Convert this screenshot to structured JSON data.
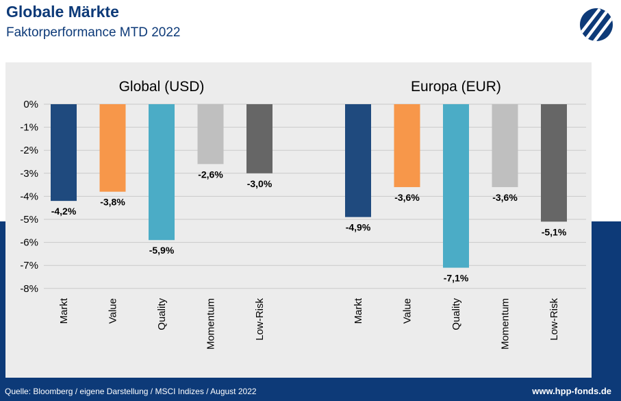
{
  "header": {
    "title": "Globale Märkte",
    "subtitle": "Faktorperformance MTD 2022"
  },
  "footer": {
    "source": "Quelle: Bloomberg / eigene Darstellung / MSCI Indizes / August 2022",
    "website": "www.hpp-fonds.de"
  },
  "colors": {
    "Markt": "#1f4a7e",
    "Value": "#f7974a",
    "Quality": "#4bacc6",
    "Momentum": "#bfbfbf",
    "Low-Risk": "#666666",
    "brand": "#0d3a78"
  },
  "logo_icon": "hpp-logo-icon",
  "chart_data": [
    {
      "type": "bar",
      "title": "Global (USD)",
      "categories": [
        "Markt",
        "Value",
        "Quality",
        "Momentum",
        "Low-Risk"
      ],
      "values": [
        -4.2,
        -3.8,
        -5.9,
        -2.6,
        -3.0
      ],
      "value_labels": [
        "-4,2%",
        "-3,8%",
        "-5,9%",
        "-2,6%",
        "-3,0%"
      ],
      "ylim": [
        -8,
        0
      ],
      "yticks": [
        "0%",
        "-1%",
        "-2%",
        "-3%",
        "-4%",
        "-5%",
        "-6%",
        "-7%",
        "-8%"
      ],
      "grid": true,
      "xlabel": "",
      "ylabel": ""
    },
    {
      "type": "bar",
      "title": "Europa (EUR)",
      "categories": [
        "Markt",
        "Value",
        "Quality",
        "Momentum",
        "Low-Risk"
      ],
      "values": [
        -4.9,
        -3.6,
        -7.1,
        -3.6,
        -5.1
      ],
      "value_labels": [
        "-4,9%",
        "-3,6%",
        "-7,1%",
        "-3,6%",
        "-5,1%"
      ],
      "ylim": [
        -8,
        0
      ],
      "grid": true,
      "xlabel": "",
      "ylabel": ""
    }
  ]
}
